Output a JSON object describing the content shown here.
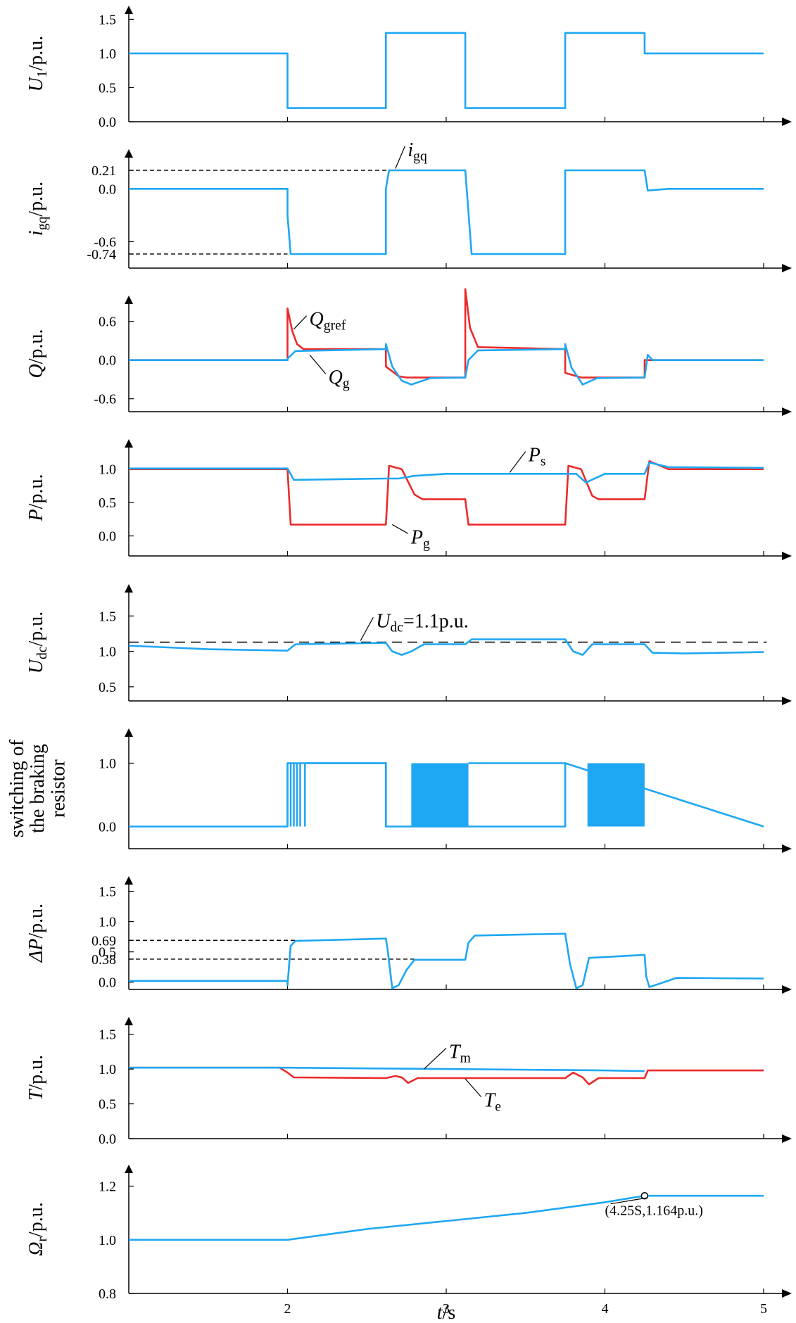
{
  "colors": {
    "blue": "#1ea7f2",
    "red": "#ec2a2a",
    "black": "#000000"
  },
  "chart_data": [
    {
      "type": "line",
      "ylabel": {
        "main": "U",
        "sub": "1",
        "unit": "/p.u."
      },
      "ylim": [
        0,
        1.7
      ],
      "yticks": [
        "1.5",
        "1.0",
        "0.5",
        "0.0"
      ],
      "ytick_values": [
        1.5,
        1.0,
        0.5,
        0.0
      ],
      "series": [
        {
          "color": "blue",
          "x": [
            1.0,
            2.0,
            2.0,
            2.62,
            2.62,
            3.12,
            3.12,
            3.75,
            3.75,
            4.25,
            4.25,
            5.0
          ],
          "y": [
            1.0,
            1.0,
            0.2,
            0.2,
            1.3,
            1.3,
            0.2,
            0.2,
            1.3,
            1.3,
            1.0,
            1.0
          ]
        }
      ],
      "hlines": [],
      "annotations": []
    },
    {
      "type": "line",
      "ylabel": {
        "main": "i",
        "sub": "gq",
        "unit": "/p.u."
      },
      "ylim": [
        -0.9,
        0.45
      ],
      "yticks": [
        "0.21",
        "0.0",
        "-0.6",
        "-0.74"
      ],
      "ytick_values": [
        0.21,
        0.0,
        -0.6,
        -0.74
      ],
      "series": [
        {
          "color": "blue",
          "x": [
            1.0,
            2.0,
            2.0,
            2.02,
            2.62,
            2.62,
            2.64,
            3.12,
            3.16,
            3.75,
            3.75,
            3.77,
            4.25,
            4.27,
            4.4,
            5.0
          ],
          "y": [
            0.0,
            0.0,
            -0.3,
            -0.74,
            -0.74,
            0.0,
            0.21,
            0.21,
            -0.74,
            -0.74,
            0.21,
            0.21,
            0.21,
            -0.02,
            0.0,
            0.0
          ]
        }
      ],
      "hlines": [
        {
          "y": 0.21,
          "x0": 1.0,
          "x1": 2.75
        },
        {
          "y": -0.74,
          "x0": 1.0,
          "x1": 2.0
        }
      ],
      "annotations": [
        {
          "main": "i",
          "sub": "gq",
          "x": 2.74,
          "y": 0.42,
          "lx": 2.68,
          "ly": 0.23
        }
      ]
    },
    {
      "type": "line",
      "ylabel": {
        "main": "Q",
        "sub": "",
        "unit": "/p.u."
      },
      "ylim": [
        -0.8,
        1.0
      ],
      "yticks": [
        "0.6",
        "0.0",
        "-0.6"
      ],
      "ytick_values": [
        0.6,
        0.0,
        -0.6
      ],
      "series": [
        {
          "name": "Q<sub>gref</sub>",
          "color": "red",
          "x": [
            1.0,
            2.0,
            2.0,
            2.03,
            2.06,
            2.1,
            2.62,
            2.62,
            2.7,
            2.75,
            3.12,
            3.12,
            3.15,
            3.2,
            3.75,
            3.75,
            3.85,
            4.25,
            4.25,
            5.0
          ],
          "y": [
            0.0,
            0.0,
            0.8,
            0.45,
            0.25,
            0.17,
            0.17,
            -0.1,
            -0.25,
            -0.27,
            -0.27,
            1.1,
            0.5,
            0.2,
            0.17,
            -0.2,
            -0.27,
            -0.27,
            0.0,
            0.0
          ]
        },
        {
          "name": "Q<sub>g</sub>",
          "color": "blue",
          "x": [
            1.0,
            2.0,
            2.0,
            2.05,
            2.62,
            2.62,
            2.66,
            2.72,
            2.78,
            2.9,
            3.12,
            3.14,
            3.2,
            3.75,
            3.75,
            3.79,
            3.86,
            3.95,
            4.25,
            4.27,
            4.3,
            5.0
          ],
          "y": [
            0.0,
            0.0,
            0.02,
            0.14,
            0.17,
            0.25,
            -0.1,
            -0.32,
            -0.38,
            -0.28,
            -0.27,
            0.0,
            0.15,
            0.17,
            0.25,
            -0.12,
            -0.38,
            -0.28,
            -0.27,
            0.08,
            0.0,
            0.0
          ]
        }
      ],
      "hlines": [],
      "annotations": [
        {
          "main": "Q",
          "sub": "gref",
          "x": 2.12,
          "y": 0.6,
          "lx": 2.04,
          "ly": 0.48
        },
        {
          "main": "Q",
          "sub": "g",
          "x": 2.24,
          "y": -0.3,
          "lx": 2.14,
          "ly": 0.08
        }
      ]
    },
    {
      "type": "line",
      "ylabel": {
        "main": "P",
        "sub": "",
        "unit": "/p.u."
      },
      "ylim": [
        -0.3,
        1.45
      ],
      "yticks": [
        "1.0",
        "0.5",
        "0.0"
      ],
      "ytick_values": [
        1.0,
        0.5,
        0.0
      ],
      "series": [
        {
          "name": "P<sub>g</sub>",
          "color": "red",
          "x": [
            1.0,
            2.0,
            2.02,
            2.62,
            2.64,
            2.72,
            2.8,
            2.85,
            3.12,
            3.14,
            3.75,
            3.77,
            3.85,
            3.92,
            3.96,
            4.25,
            4.28,
            4.4,
            5.0
          ],
          "y": [
            1.0,
            1.0,
            0.17,
            0.17,
            1.05,
            1.0,
            0.62,
            0.55,
            0.55,
            0.17,
            0.17,
            1.05,
            1.0,
            0.6,
            0.55,
            0.55,
            1.12,
            1.0,
            1.0
          ]
        },
        {
          "name": "P<sub>s</sub>",
          "color": "blue",
          "x": [
            1.0,
            2.0,
            2.04,
            2.62,
            2.7,
            2.8,
            3.0,
            3.75,
            3.82,
            3.88,
            4.0,
            4.25,
            4.28,
            4.4,
            5.0
          ],
          "y": [
            1.01,
            1.01,
            0.84,
            0.86,
            0.86,
            0.9,
            0.93,
            0.93,
            0.93,
            0.8,
            0.93,
            0.93,
            1.1,
            1.03,
            1.02
          ]
        }
      ],
      "hlines": [],
      "annotations": [
        {
          "main": "P",
          "sub": "s",
          "x": 3.5,
          "y": 1.18,
          "lx": 3.4,
          "ly": 0.95
        },
        {
          "main": "P",
          "sub": "g",
          "x": 2.76,
          "y": -0.05,
          "lx": 2.66,
          "ly": 0.17
        }
      ]
    },
    {
      "type": "line",
      "ylabel": {
        "main": "U",
        "sub": "dc",
        "unit": "/p.u."
      },
      "ylim": [
        0.3,
        1.95
      ],
      "yticks": [
        "1.5",
        "1.0",
        "0.5"
      ],
      "ytick_values": [
        1.5,
        1.0,
        0.5
      ],
      "series": [
        {
          "color": "blue",
          "x": [
            1.0,
            1.5,
            2.0,
            2.05,
            2.62,
            2.66,
            2.72,
            2.78,
            2.86,
            3.12,
            3.16,
            3.75,
            3.8,
            3.86,
            3.92,
            4.25,
            4.3,
            4.5,
            5.0
          ],
          "y": [
            1.08,
            1.03,
            1.01,
            1.1,
            1.12,
            1.0,
            0.95,
            1.0,
            1.1,
            1.1,
            1.17,
            1.17,
            1.0,
            0.95,
            1.1,
            1.1,
            0.98,
            0.97,
            0.99
          ]
        }
      ],
      "hlines": [
        {
          "y": 1.13,
          "x0": 1.0,
          "x1": 5.02,
          "dash": "long"
        }
      ],
      "annotations": [
        {
          "main": "U",
          "sub": "dc",
          "text": "=1.1p.u.",
          "x": 2.54,
          "y": 1.4,
          "lx": 2.46,
          "ly": 1.15
        }
      ]
    },
    {
      "type": "line",
      "ylabel": {
        "lines": [
          "switching of",
          "the braking",
          "resistor"
        ]
      },
      "ylim": [
        -0.35,
        1.55
      ],
      "yticks": [
        "1.0",
        "0.0"
      ],
      "ytick_values": [
        1.0,
        0.0
      ],
      "series": [
        {
          "color": "blue",
          "x": [
            1.0,
            2.0,
            2.0,
            2.62,
            2.62,
            3.75,
            3.75,
            5.0
          ],
          "y": [
            0.0,
            0.0,
            1.0,
            1.0,
            0.0,
            0.0,
            1.0,
            0.0
          ]
        }
      ],
      "pulses": [
        {
          "x": [
            2.0,
            2.02,
            2.04,
            2.06,
            2.08,
            2.11
          ],
          "y0": 0.0,
          "y1": 1.0
        }
      ],
      "fills": [
        {
          "x0": 2.78,
          "x1": 3.14,
          "y0": 0.0,
          "y1": 1.0
        },
        {
          "x0": 3.89,
          "x1": 4.25,
          "y0": 0.0,
          "y1": 1.0
        }
      ],
      "steps": [
        {
          "x": [
            2.11,
            2.62,
            2.62
          ],
          "y": [
            1.0,
            1.0,
            0.0
          ]
        },
        {
          "x": [
            3.14,
            3.75,
            3.75
          ],
          "y": [
            1.0,
            1.0,
            0.0
          ]
        }
      ],
      "hlines": [],
      "annotations": []
    },
    {
      "type": "line",
      "ylabel": {
        "main": "ΔP",
        "sub": "",
        "unit": "/p.u."
      },
      "ylim": [
        -0.12,
        1.75
      ],
      "yticks": [
        "1.5",
        "1.0",
        "0.69",
        "0.5",
        "0.38",
        "0.0"
      ],
      "ytick_values": [
        1.5,
        1.0,
        0.69,
        0.5,
        0.38,
        0.0
      ],
      "series": [
        {
          "color": "blue",
          "x": [
            1.0,
            2.0,
            2.0,
            2.02,
            2.05,
            2.62,
            2.63,
            2.66,
            2.7,
            2.75,
            2.8,
            3.12,
            3.14,
            3.18,
            3.75,
            3.78,
            3.82,
            3.86,
            3.9,
            4.25,
            4.26,
            4.28,
            4.35,
            4.45,
            5.0
          ],
          "y": [
            0.02,
            0.02,
            -0.05,
            0.6,
            0.68,
            0.72,
            0.55,
            -0.1,
            -0.05,
            0.2,
            0.37,
            0.37,
            0.65,
            0.77,
            0.8,
            0.3,
            -0.1,
            -0.05,
            0.4,
            0.45,
            0.1,
            -0.08,
            -0.02,
            0.07,
            0.06
          ]
        }
      ],
      "hlines": [
        {
          "y": 0.69,
          "x0": 1.0,
          "x1": 2.2
        },
        {
          "y": 0.38,
          "x0": 1.0,
          "x1": 2.8
        }
      ],
      "annotations": []
    },
    {
      "type": "line",
      "ylabel": {
        "main": "T",
        "sub": "",
        "unit": "/p.u."
      },
      "ylim": [
        0.0,
        1.75
      ],
      "yticks": [
        "1.5",
        "1.0",
        "0.5",
        "0.0"
      ],
      "ytick_values": [
        1.5,
        1.0,
        0.5,
        0.0
      ],
      "series": [
        {
          "name": "T<sub>e</sub>",
          "color": "red",
          "x": [
            1.0,
            1.95,
            2.0,
            2.04,
            2.62,
            2.68,
            2.72,
            2.76,
            2.82,
            3.75,
            3.8,
            3.86,
            3.9,
            3.96,
            4.25,
            4.27,
            5.0
          ],
          "y": [
            1.02,
            1.02,
            0.95,
            0.88,
            0.87,
            0.9,
            0.88,
            0.8,
            0.87,
            0.87,
            0.95,
            0.88,
            0.78,
            0.87,
            0.87,
            0.98,
            0.98
          ]
        },
        {
          "name": "T<sub>m</sub>",
          "color": "blue",
          "x": [
            1.0,
            2.0,
            3.0,
            4.0,
            4.25
          ],
          "y": [
            1.02,
            1.02,
            1.0,
            0.98,
            0.97
          ]
        }
      ],
      "hlines": [],
      "annotations": [
        {
          "main": "T",
          "sub": "m",
          "x": 3.0,
          "y": 1.22,
          "lx": 2.86,
          "ly": 1.0
        },
        {
          "main": "T",
          "sub": "e",
          "x": 3.22,
          "y": 0.52,
          "lx": 3.12,
          "ly": 0.86
        }
      ]
    },
    {
      "type": "line",
      "ylabel": {
        "main": "Ω",
        "sub": "r",
        "unit": "/p.u."
      },
      "ylim": [
        0.8,
        1.28
      ],
      "yticks": [
        "1.2",
        "1.0",
        "0.8"
      ],
      "ytick_values": [
        1.2,
        1.0,
        0.8
      ],
      "xlabel": {
        "main": "t",
        "unit": "/s"
      },
      "xticks": [
        "2",
        "3",
        "4",
        "5"
      ],
      "xtick_values": [
        2,
        3,
        4,
        5
      ],
      "series": [
        {
          "color": "blue",
          "x": [
            1.0,
            2.0,
            2.5,
            3.0,
            3.5,
            4.0,
            4.25,
            5.0
          ],
          "y": [
            1.0,
            1.0,
            1.04,
            1.07,
            1.1,
            1.14,
            1.164,
            1.164
          ]
        }
      ],
      "marker": {
        "x": 4.25,
        "y": 1.164
      },
      "hlines": [],
      "annotations": [
        {
          "text": "(4.25S,1.164p.u.)",
          "x": 4.0,
          "y": 1.092,
          "lx": 4.27,
          "ly": 1.157,
          "small": true
        }
      ]
    }
  ]
}
